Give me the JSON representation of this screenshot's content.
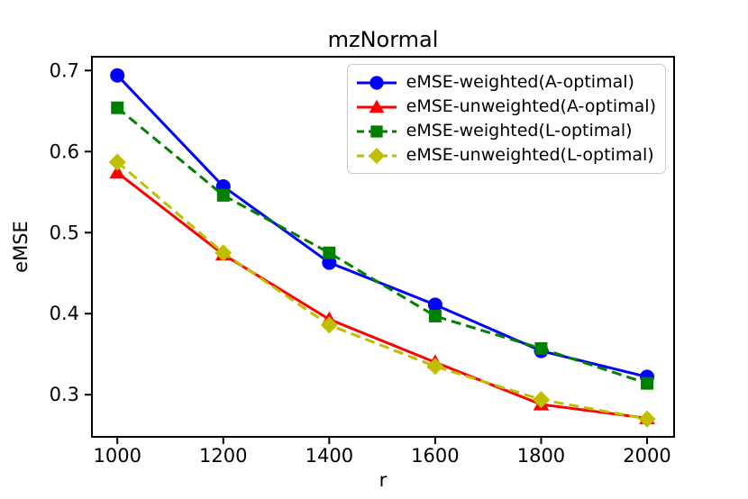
{
  "figure": {
    "background": "#ffffff"
  },
  "chart_data": {
    "type": "line",
    "title": "mzNormal",
    "xlabel": "r",
    "ylabel": "eMSE",
    "x": [
      1000,
      1200,
      1400,
      1600,
      1800,
      2000
    ],
    "xticks": [
      "1000",
      "1200",
      "1400",
      "1600",
      "1800",
      "2000"
    ],
    "yticks": [
      "0.3",
      "0.4",
      "0.5",
      "0.6",
      "0.7"
    ],
    "xlim": [
      952,
      2051
    ],
    "ylim": [
      0.248,
      0.717
    ],
    "grid": false,
    "legend_position": "upper right",
    "axis_color": "#000000",
    "series": [
      {
        "name": "eMSE-weighted(A-optimal)",
        "color": "#0000ff",
        "linestyle": "solid",
        "marker": "circle",
        "values": [
          0.694,
          0.557,
          0.463,
          0.411,
          0.354,
          0.322
        ]
      },
      {
        "name": "eMSE-unweighted(A-optimal)",
        "color": "#ff0000",
        "linestyle": "solid",
        "marker": "triangle",
        "values": [
          0.574,
          0.473,
          0.393,
          0.34,
          0.288,
          0.271
        ]
      },
      {
        "name": "eMSE-weighted(L-optimal)",
        "color": "#008000",
        "linestyle": "dashed",
        "marker": "square",
        "values": [
          0.654,
          0.546,
          0.475,
          0.397,
          0.357,
          0.314
        ]
      },
      {
        "name": "eMSE-unweighted(L-optimal)",
        "color": "#bfbf00",
        "linestyle": "dashed",
        "marker": "diamond",
        "values": [
          0.587,
          0.475,
          0.386,
          0.335,
          0.294,
          0.27
        ]
      }
    ]
  }
}
